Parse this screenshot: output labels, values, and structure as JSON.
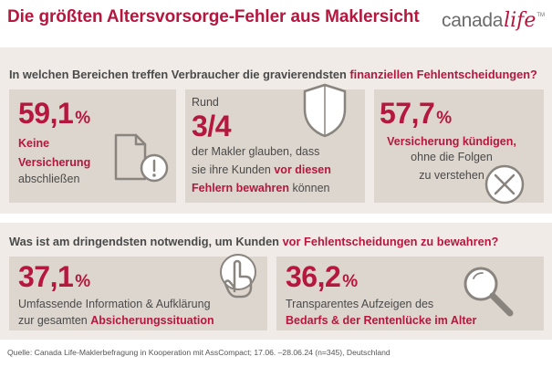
{
  "header": {
    "title": "Die größten Altersvorsorge-Fehler aus Maklersicht",
    "logo_part1": "canada",
    "logo_part2": "life",
    "logo_tm": "TM"
  },
  "section1": {
    "question_plain": "In welchen Bereichen treffen Verbraucher die gravierendsten",
    "question_highlight": "finanziellen Fehlentscheidungen?",
    "card1": {
      "value": "59,1",
      "unit": "%",
      "line1_red": "Keine",
      "line2_red": "Versicherung",
      "line3": "abschließen",
      "icon": "document-warning-icon"
    },
    "card2": {
      "prefix": "Rund",
      "value": "3/4",
      "line1": "der Makler glauben, dass",
      "line2_plain": "sie ihre Kunden",
      "line2_red": "vor diesen",
      "line3_red": "Fehlern bewahren",
      "line3_plain": "können",
      "icon": "shield-icon"
    },
    "card3": {
      "value": "57,7",
      "unit": "%",
      "line1_red": "Versicherung kündigen,",
      "line2": "ohne die Folgen",
      "line3": "zu verstehen",
      "icon": "x-circle-icon"
    }
  },
  "section2": {
    "question_plain": "Was ist am dringendsten notwendig, um Kunden",
    "question_highlight": "vor Fehlentscheidungen zu bewahren?",
    "card4": {
      "value": "37,1",
      "unit": "%",
      "line1": "Umfassende Information & Aufklärung",
      "line2_plain": "zur gesamten",
      "line2_red": "Absicherungssituation",
      "icon": "pointing-hand-icon"
    },
    "card5": {
      "value": "36,2",
      "unit": "%",
      "line1": "Transparentes  Aufzeigen des",
      "line2_red": "Bedarfs & der Rentenlücke im Alter",
      "icon": "magnifier-icon"
    }
  },
  "footer": {
    "source": "Quelle: Canada Life-Maklerbefragung in Kooperation mit AssCompact; 17.06. –28.06.24 (n=345), Deutschland"
  }
}
